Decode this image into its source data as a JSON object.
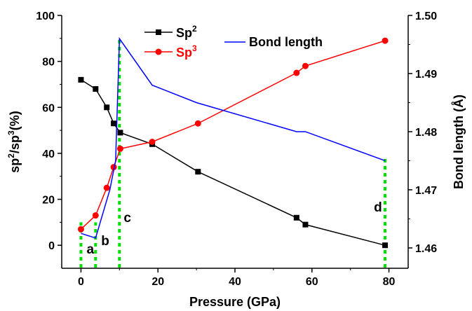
{
  "chart_data": {
    "type": "line",
    "title": "",
    "xlabel": "Pressure (GPa)",
    "ylabel_left_parts": [
      "sp",
      "2",
      "/sp",
      "3",
      "(%)"
    ],
    "ylabel_right": "Bond length (Å)",
    "xlim": [
      -5,
      85
    ],
    "ylim_left": [
      -10,
      100
    ],
    "ylim_right": [
      1.4565,
      1.5
    ],
    "xticks": [
      0,
      20,
      40,
      60,
      80
    ],
    "yticks_left": [
      0,
      20,
      40,
      60,
      80,
      100
    ],
    "yticks_right": [
      1.46,
      1.47,
      1.48,
      1.49,
      1.5
    ],
    "xtick_labels": [
      "0",
      "20",
      "40",
      "60",
      "80"
    ],
    "ytick_labels_left": [
      "0",
      "20",
      "40",
      "60",
      "80",
      "100"
    ],
    "ytick_labels_right": [
      "1.46",
      "1.47",
      "1.48",
      "1.49",
      "1.50"
    ],
    "legend_position": "top-center",
    "series": [
      {
        "name_parts": [
          "Sp",
          "2"
        ],
        "axis": "left",
        "color": "#000000",
        "marker": "square",
        "x": [
          0,
          3.8,
          6.7,
          8.5,
          10.2,
          18.5,
          30.4,
          56,
          58.3,
          79
        ],
        "y": [
          72,
          68,
          60,
          53,
          49,
          44,
          32,
          12,
          9,
          0
        ]
      },
      {
        "name_parts": [
          "Sp",
          "3"
        ],
        "axis": "left",
        "color": "#ff0000",
        "marker": "circle",
        "x": [
          0,
          3.8,
          6.7,
          8.5,
          10.2,
          18.5,
          30.4,
          56,
          58.3,
          79
        ],
        "y": [
          7,
          13,
          25,
          34,
          42,
          45,
          53,
          75,
          78,
          89
        ]
      },
      {
        "name": "Bond length",
        "axis": "right",
        "color": "#0000ff",
        "marker": "none",
        "x": [
          0,
          3.8,
          7.5,
          9.0,
          10.0,
          18.5,
          30.0,
          56.0,
          58.3,
          79.0
        ],
        "y": [
          1.4625,
          1.4617,
          1.47,
          1.475,
          1.496,
          1.488,
          1.485,
          1.48,
          1.48,
          1.475
        ]
      }
    ],
    "annotations": [
      {
        "text": "a",
        "x": 0.0
      },
      {
        "text": "b",
        "x": 3.8
      },
      {
        "text": "c",
        "x": 10.0
      },
      {
        "text": "d",
        "x": 79.0
      }
    ],
    "vlines": [
      {
        "x": 0.0,
        "y_top_left": 10
      },
      {
        "x": 3.8,
        "y_top_left": 10
      },
      {
        "x": 10.0,
        "y_top_left": 90
      },
      {
        "x": 79.0,
        "y_top_left": 39
      }
    ],
    "vline_color": "#00e000"
  }
}
